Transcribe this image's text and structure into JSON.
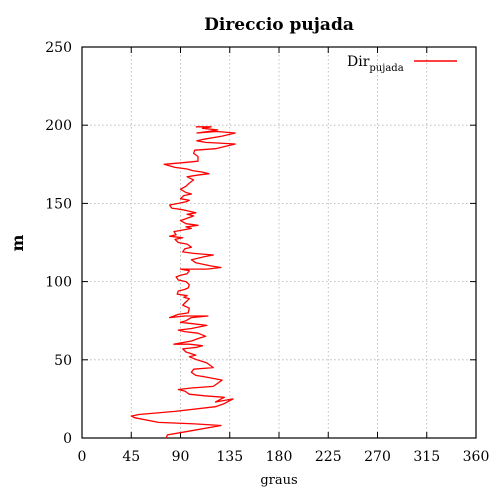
{
  "chart_data": {
    "type": "line",
    "title": "Direccio pujada",
    "xlabel": "graus",
    "ylabel": "m",
    "xlim": [
      0,
      360
    ],
    "ylim": [
      0,
      250
    ],
    "xticks": [
      0,
      45,
      90,
      135,
      180,
      225,
      270,
      315,
      360
    ],
    "yticks": [
      0,
      50,
      100,
      150,
      200,
      250
    ],
    "grid": true,
    "legend_position": "top-right",
    "series": [
      {
        "name": "Dir",
        "name_subscript": "pujada",
        "color": "#ff0000",
        "points": [
          [
            77,
            0
          ],
          [
            78,
            2
          ],
          [
            95,
            4
          ],
          [
            127,
            8
          ],
          [
            103,
            9
          ],
          [
            70,
            10
          ],
          [
            48,
            13
          ],
          [
            45,
            14
          ],
          [
            52,
            15
          ],
          [
            85,
            17
          ],
          [
            122,
            20
          ],
          [
            130,
            22
          ],
          [
            138,
            25
          ],
          [
            122,
            23
          ],
          [
            130,
            26
          ],
          [
            112,
            27
          ],
          [
            98,
            28
          ],
          [
            94,
            30
          ],
          [
            88,
            31
          ],
          [
            100,
            32
          ],
          [
            120,
            33
          ],
          [
            128,
            37
          ],
          [
            113,
            39
          ],
          [
            104,
            40
          ],
          [
            100,
            42
          ],
          [
            102,
            44
          ],
          [
            120,
            45
          ],
          [
            114,
            48
          ],
          [
            105,
            50
          ],
          [
            98,
            52
          ],
          [
            104,
            53
          ],
          [
            95,
            55
          ],
          [
            92,
            57
          ],
          [
            105,
            58
          ],
          [
            110,
            59
          ],
          [
            98,
            60
          ],
          [
            84,
            60
          ],
          [
            100,
            62
          ],
          [
            108,
            64
          ],
          [
            113,
            65
          ],
          [
            106,
            67
          ],
          [
            94,
            68
          ],
          [
            88,
            69
          ],
          [
            100,
            70
          ],
          [
            114,
            72
          ],
          [
            102,
            73
          ],
          [
            90,
            74
          ],
          [
            95,
            75
          ],
          [
            100,
            77
          ],
          [
            115,
            78
          ],
          [
            94,
            78
          ],
          [
            80,
            77
          ],
          [
            88,
            79
          ],
          [
            97,
            80
          ],
          [
            98,
            83
          ],
          [
            92,
            85
          ],
          [
            95,
            87
          ],
          [
            98,
            89
          ],
          [
            93,
            90
          ],
          [
            96,
            91
          ],
          [
            87,
            92
          ],
          [
            88,
            94
          ],
          [
            94,
            95
          ],
          [
            97,
            96
          ],
          [
            98,
            98
          ],
          [
            95,
            100
          ],
          [
            88,
            101
          ],
          [
            86,
            103
          ],
          [
            90,
            104
          ],
          [
            96,
            105
          ],
          [
            98,
            107
          ],
          [
            90,
            108
          ],
          [
            114,
            108
          ],
          [
            127,
            109
          ],
          [
            118,
            110
          ],
          [
            104,
            112
          ],
          [
            100,
            114
          ],
          [
            112,
            116
          ],
          [
            120,
            117
          ],
          [
            102,
            118
          ],
          [
            92,
            119
          ],
          [
            94,
            121
          ],
          [
            100,
            122
          ],
          [
            96,
            124
          ],
          [
            88,
            125
          ],
          [
            85,
            127
          ],
          [
            92,
            128
          ],
          [
            80,
            129
          ],
          [
            86,
            130
          ],
          [
            84,
            132
          ],
          [
            92,
            133
          ],
          [
            100,
            134
          ],
          [
            95,
            135
          ],
          [
            106,
            136
          ],
          [
            95,
            137
          ],
          [
            90,
            139
          ],
          [
            98,
            141
          ],
          [
            102,
            142
          ],
          [
            96,
            143
          ],
          [
            104,
            144
          ],
          [
            98,
            145
          ],
          [
            92,
            146
          ],
          [
            82,
            147
          ],
          [
            80,
            149
          ],
          [
            88,
            150
          ],
          [
            95,
            151
          ],
          [
            98,
            152
          ],
          [
            90,
            153
          ],
          [
            93,
            155
          ],
          [
            100,
            156
          ],
          [
            95,
            157
          ],
          [
            90,
            159
          ],
          [
            95,
            161
          ],
          [
            98,
            163
          ],
          [
            102,
            165
          ],
          [
            96,
            167
          ],
          [
            105,
            168
          ],
          [
            116,
            169
          ],
          [
            110,
            170
          ],
          [
            101,
            171
          ],
          [
            96,
            172
          ],
          [
            85,
            173
          ],
          [
            75,
            175
          ],
          [
            92,
            176
          ],
          [
            106,
            177
          ],
          [
            106,
            180
          ],
          [
            102,
            182
          ],
          [
            103,
            184
          ],
          [
            122,
            185
          ],
          [
            140,
            188
          ],
          [
            113,
            189
          ],
          [
            105,
            190
          ],
          [
            111,
            191
          ],
          [
            128,
            193
          ],
          [
            140,
            195
          ],
          [
            123,
            196
          ],
          [
            105,
            195
          ],
          [
            115,
            196
          ],
          [
            124,
            197
          ],
          [
            110,
            198
          ],
          [
            118,
            199
          ],
          [
            104,
            199
          ]
        ]
      }
    ]
  }
}
